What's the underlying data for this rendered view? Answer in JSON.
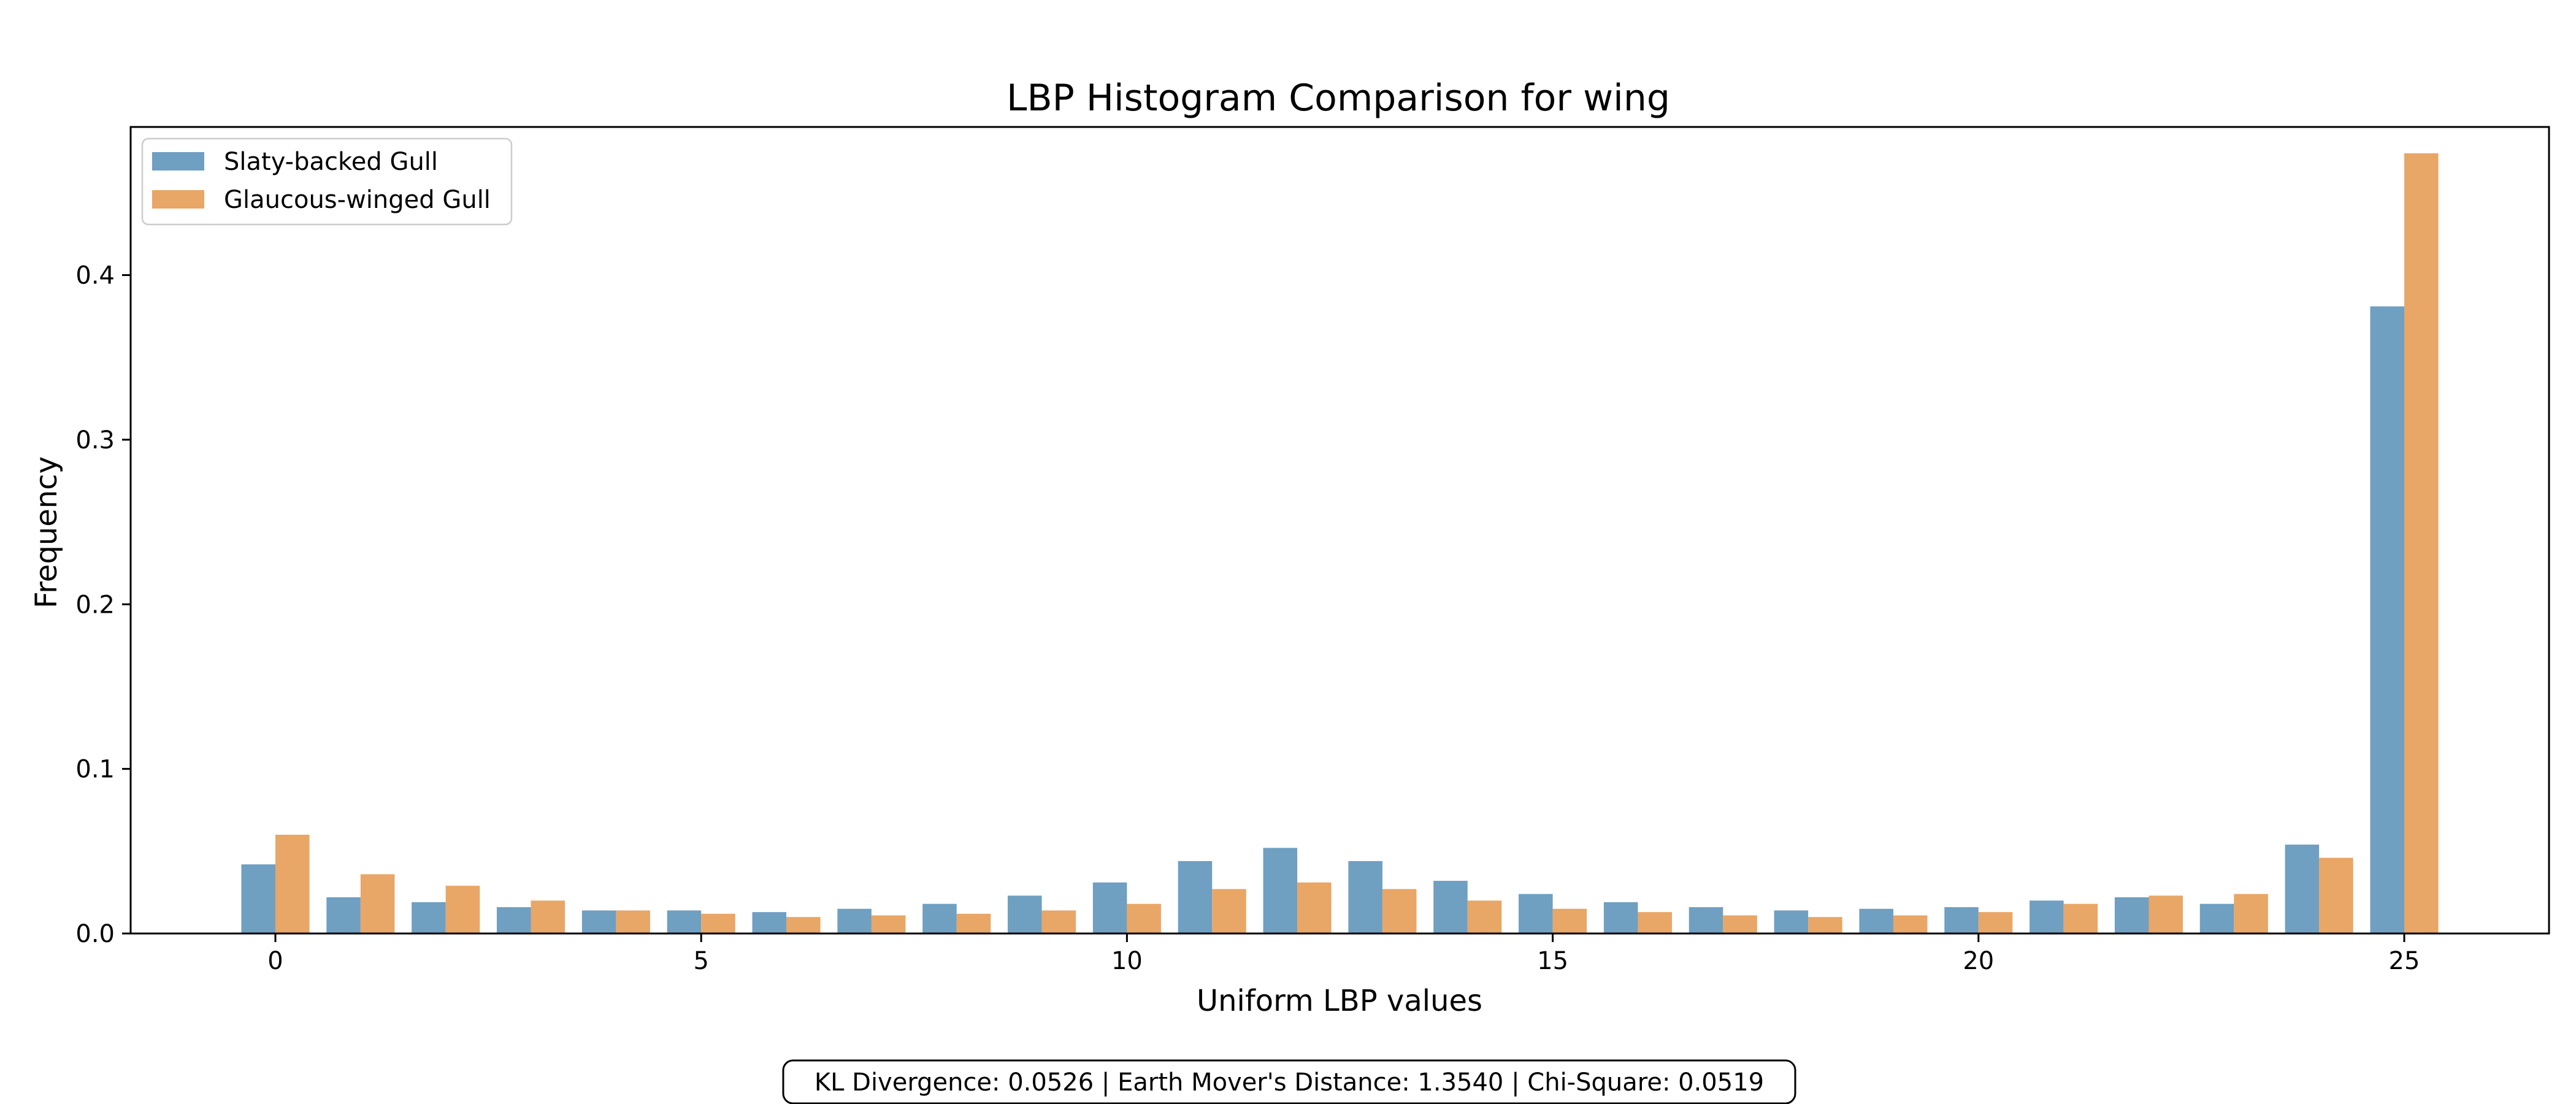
{
  "chart_data": {
    "type": "bar",
    "title": "LBP Histogram Comparison for wing",
    "xlabel": "Uniform LBP values",
    "ylabel": "Frequency",
    "x": [
      0,
      1,
      2,
      3,
      4,
      5,
      6,
      7,
      8,
      9,
      10,
      11,
      12,
      13,
      14,
      15,
      16,
      17,
      18,
      19,
      20,
      21,
      22,
      23,
      24,
      25
    ],
    "xlim": [
      -1.7,
      26.7
    ],
    "ylim": [
      0,
      0.49
    ],
    "xticks": [
      0,
      5,
      10,
      15,
      20,
      25
    ],
    "yticks": [
      0.0,
      0.1,
      0.2,
      0.3,
      0.4
    ],
    "xtick_labels": [
      "0",
      "5",
      "10",
      "15",
      "20",
      "25"
    ],
    "ytick_labels": [
      "0.0",
      "0.1",
      "0.2",
      "0.3",
      "0.4"
    ],
    "grid": false,
    "legend_position": "top-left",
    "series": [
      {
        "name": "Slaty-backed Gull",
        "color": "#6f9fc1",
        "values": [
          0.042,
          0.022,
          0.019,
          0.016,
          0.014,
          0.014,
          0.013,
          0.015,
          0.018,
          0.023,
          0.031,
          0.044,
          0.052,
          0.044,
          0.032,
          0.024,
          0.019,
          0.016,
          0.014,
          0.015,
          0.016,
          0.02,
          0.022,
          0.018,
          0.054,
          0.381
        ]
      },
      {
        "name": "Glaucous-winged Gull",
        "color": "#e8a667",
        "values": [
          0.06,
          0.036,
          0.029,
          0.02,
          0.014,
          0.012,
          0.01,
          0.011,
          0.012,
          0.014,
          0.018,
          0.027,
          0.031,
          0.027,
          0.02,
          0.015,
          0.013,
          0.011,
          0.01,
          0.011,
          0.013,
          0.018,
          0.023,
          0.024,
          0.046,
          0.474
        ]
      }
    ],
    "annotation": "KL Divergence: 0.0526 | Earth Mover's Distance: 1.3540 | Chi-Square: 0.0519"
  }
}
